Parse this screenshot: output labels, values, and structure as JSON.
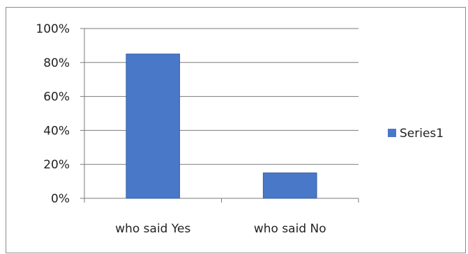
{
  "chart_data": {
    "type": "bar",
    "categories": [
      "who said Yes",
      "who said No"
    ],
    "series": [
      {
        "name": "Series1",
        "values": [
          85,
          15
        ],
        "color": "#4a78c8"
      }
    ],
    "y_ticks": [
      "0%",
      "20%",
      "40%",
      "60%",
      "80%",
      "100%"
    ],
    "ylim": [
      0,
      100
    ],
    "grid": true,
    "legend_position": "right"
  }
}
